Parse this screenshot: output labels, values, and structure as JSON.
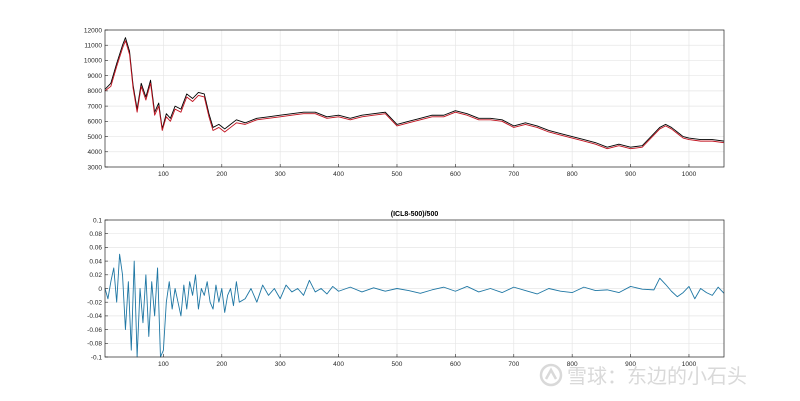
{
  "colors": {
    "series_black": "#000000",
    "series_red": "#c1121f",
    "series_blue": "#1f77a4",
    "grid": "#e6e6e6",
    "axis": "#262626",
    "watermark": "#d9d9d9"
  },
  "watermark": {
    "text": "雪球：东边的小石头",
    "icon": "snowball-logo-icon"
  },
  "chart_data": [
    {
      "type": "line",
      "title": "",
      "xlabel": "",
      "ylabel": "",
      "xlim": [
        0,
        1060
      ],
      "ylim": [
        3000,
        12000
      ],
      "grid": true,
      "legend": "none",
      "xticks": [
        100,
        200,
        300,
        400,
        500,
        600,
        700,
        800,
        900,
        1000
      ],
      "yticks": [
        3000,
        4000,
        5000,
        6000,
        7000,
        8000,
        9000,
        10000,
        11000,
        12000
      ],
      "series": [
        {
          "color": "black",
          "x": [
            0,
            10,
            20,
            30,
            35,
            42,
            48,
            55,
            62,
            70,
            78,
            85,
            92,
            98,
            105,
            112,
            120,
            130,
            140,
            150,
            160,
            170,
            178,
            185,
            195,
            205,
            215,
            225,
            240,
            260,
            280,
            300,
            320,
            340,
            360,
            380,
            400,
            420,
            440,
            460,
            480,
            500,
            520,
            540,
            560,
            580,
            600,
            620,
            640,
            660,
            680,
            700,
            720,
            740,
            760,
            780,
            800,
            820,
            840,
            860,
            880,
            900,
            920,
            940,
            950,
            960,
            970,
            980,
            990,
            1000,
            1020,
            1040,
            1060
          ],
          "y": [
            8100,
            8500,
            9800,
            11000,
            11500,
            10600,
            8400,
            6800,
            8500,
            7600,
            8700,
            6600,
            7200,
            5500,
            6500,
            6200,
            7000,
            6800,
            7800,
            7500,
            7900,
            7800,
            6500,
            5600,
            5800,
            5500,
            5800,
            6100,
            5900,
            6200,
            6300,
            6400,
            6500,
            6600,
            6600,
            6300,
            6400,
            6200,
            6400,
            6500,
            6600,
            5800,
            6000,
            6200,
            6400,
            6400,
            6700,
            6500,
            6200,
            6200,
            6100,
            5700,
            5900,
            5700,
            5400,
            5200,
            5000,
            4800,
            4600,
            4300,
            4500,
            4300,
            4400,
            5200,
            5600,
            5800,
            5600,
            5300,
            5000,
            4900,
            4800,
            4800,
            4700
          ]
        },
        {
          "color": "red",
          "x": [
            0,
            10,
            20,
            30,
            35,
            42,
            48,
            55,
            62,
            70,
            78,
            85,
            92,
            98,
            105,
            112,
            120,
            130,
            140,
            150,
            160,
            170,
            178,
            185,
            195,
            205,
            215,
            225,
            240,
            260,
            280,
            300,
            320,
            340,
            360,
            380,
            400,
            420,
            440,
            460,
            480,
            500,
            520,
            540,
            560,
            580,
            600,
            620,
            640,
            660,
            680,
            700,
            720,
            740,
            760,
            780,
            800,
            820,
            840,
            860,
            880,
            900,
            920,
            940,
            950,
            960,
            970,
            980,
            990,
            1000,
            1020,
            1040,
            1060
          ],
          "y": [
            8000,
            8300,
            9600,
            10800,
            11300,
            10400,
            8200,
            6600,
            8300,
            7400,
            8500,
            6400,
            7000,
            5400,
            6300,
            6000,
            6800,
            6600,
            7600,
            7300,
            7700,
            7600,
            6300,
            5400,
            5600,
            5300,
            5600,
            5900,
            5800,
            6100,
            6200,
            6300,
            6400,
            6500,
            6500,
            6200,
            6300,
            6100,
            6300,
            6400,
            6500,
            5700,
            5900,
            6100,
            6300,
            6300,
            6600,
            6400,
            6100,
            6100,
            6000,
            5600,
            5800,
            5600,
            5300,
            5100,
            4900,
            4700,
            4500,
            4200,
            4400,
            4200,
            4300,
            5100,
            5500,
            5700,
            5500,
            5200,
            4900,
            4800,
            4700,
            4700,
            4600
          ]
        }
      ]
    },
    {
      "type": "line",
      "title": "(ICL8-500)/500",
      "xlabel": "",
      "ylabel": "",
      "xlim": [
        0,
        1060
      ],
      "ylim": [
        -0.1,
        0.1
      ],
      "grid": true,
      "legend": "none",
      "xticks": [
        100,
        200,
        300,
        400,
        500,
        600,
        700,
        800,
        900,
        1000
      ],
      "yticks": [
        -0.1,
        -0.08,
        -0.06,
        -0.04,
        -0.02,
        0,
        0.02,
        0.04,
        0.06,
        0.08,
        0.1
      ],
      "series": [
        {
          "color": "blue",
          "x": [
            0,
            5,
            10,
            15,
            20,
            25,
            30,
            35,
            40,
            45,
            50,
            55,
            60,
            65,
            70,
            75,
            80,
            85,
            90,
            95,
            100,
            105,
            110,
            115,
            120,
            125,
            130,
            135,
            140,
            145,
            150,
            155,
            160,
            165,
            170,
            175,
            180,
            185,
            190,
            195,
            200,
            205,
            210,
            215,
            220,
            225,
            230,
            240,
            250,
            260,
            270,
            280,
            290,
            300,
            310,
            320,
            330,
            340,
            350,
            360,
            370,
            380,
            390,
            400,
            420,
            440,
            460,
            480,
            500,
            520,
            540,
            560,
            580,
            600,
            620,
            640,
            660,
            680,
            700,
            720,
            740,
            760,
            780,
            800,
            820,
            840,
            860,
            880,
            900,
            920,
            940,
            950,
            960,
            970,
            980,
            990,
            1000,
            1010,
            1020,
            1030,
            1040,
            1050,
            1060
          ],
          "y": [
            0.0,
            -0.015,
            0.01,
            0.03,
            -0.02,
            0.05,
            0.02,
            -0.06,
            0.01,
            -0.09,
            0.04,
            -0.1,
            0.0,
            -0.05,
            0.02,
            -0.07,
            0.01,
            -0.04,
            0.03,
            -0.1,
            -0.09,
            -0.02,
            0.01,
            -0.03,
            0.0,
            -0.02,
            -0.04,
            0.005,
            -0.03,
            0.01,
            -0.01,
            0.02,
            -0.03,
            0.0,
            -0.01,
            0.01,
            -0.02,
            -0.03,
            0.005,
            -0.02,
            0.0,
            -0.035,
            -0.01,
            0.0,
            -0.025,
            0.01,
            -0.02,
            -0.015,
            0.0,
            -0.02,
            0.005,
            -0.01,
            0.0,
            -0.015,
            0.005,
            -0.005,
            0.0,
            -0.01,
            0.012,
            -0.005,
            0.0,
            -0.008,
            0.003,
            -0.004,
            0.002,
            -0.005,
            0.001,
            -0.004,
            0.0,
            -0.003,
            -0.007,
            -0.002,
            0.002,
            -0.004,
            0.003,
            -0.005,
            0.0,
            -0.006,
            0.002,
            -0.003,
            -0.008,
            0.0,
            -0.004,
            -0.006,
            0.002,
            -0.003,
            -0.002,
            -0.006,
            0.003,
            -0.001,
            -0.002,
            0.015,
            0.006,
            -0.004,
            -0.012,
            -0.006,
            0.003,
            -0.015,
            0.0,
            -0.006,
            -0.01,
            0.002,
            -0.007
          ]
        }
      ]
    }
  ]
}
